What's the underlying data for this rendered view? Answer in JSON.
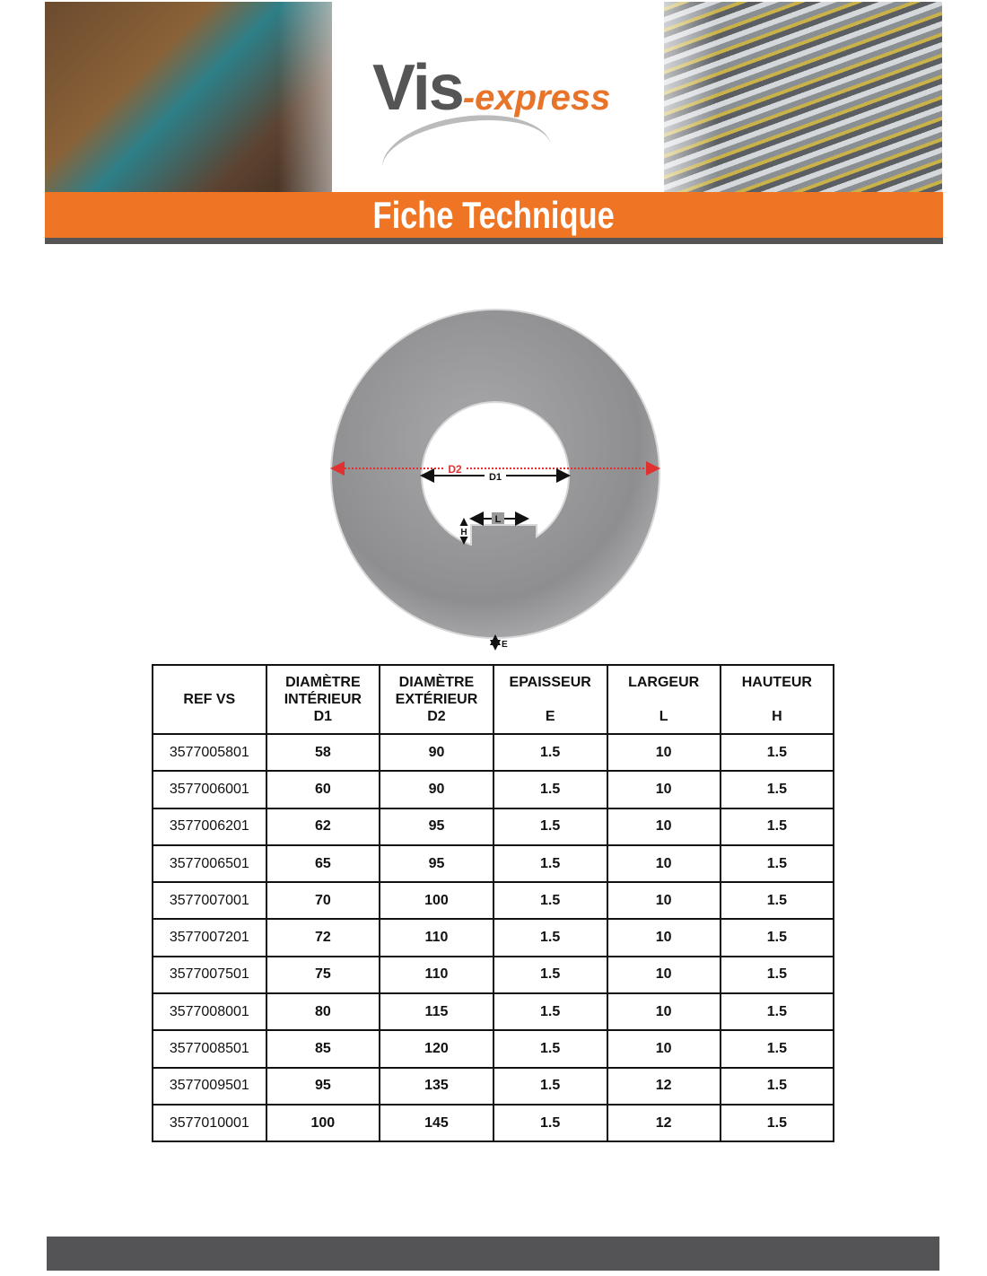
{
  "header": {
    "logo": {
      "vis": "Vis",
      "express": "-express"
    },
    "title": "Fiche Technique"
  },
  "diagram": {
    "labels": {
      "outer_diameter": "D2",
      "inner_diameter": "D1",
      "width": "L",
      "height": "H",
      "thickness": "E"
    },
    "colors": {
      "d2_arrow": "#e03030",
      "d1_arrow": "#111111"
    }
  },
  "table": {
    "headers": [
      [
        "REF VS"
      ],
      [
        "DIAMÈTRE",
        "INTÉRIEUR",
        "D1"
      ],
      [
        "DIAMÈTRE",
        "EXTÉRIEUR",
        "D2"
      ],
      [
        "EPAISSEUR",
        "",
        "E"
      ],
      [
        "LARGEUR",
        "",
        "L"
      ],
      [
        "HAUTEUR",
        "",
        "H"
      ]
    ],
    "rows": [
      [
        "3577005801",
        "58",
        "90",
        "1.5",
        "10",
        "1.5"
      ],
      [
        "3577006001",
        "60",
        "90",
        "1.5",
        "10",
        "1.5"
      ],
      [
        "3577006201",
        "62",
        "95",
        "1.5",
        "10",
        "1.5"
      ],
      [
        "3577006501",
        "65",
        "95",
        "1.5",
        "10",
        "1.5"
      ],
      [
        "3577007001",
        "70",
        "100",
        "1.5",
        "10",
        "1.5"
      ],
      [
        "3577007201",
        "72",
        "110",
        "1.5",
        "10",
        "1.5"
      ],
      [
        "3577007501",
        "75",
        "110",
        "1.5",
        "10",
        "1.5"
      ],
      [
        "3577008001",
        "80",
        "115",
        "1.5",
        "10",
        "1.5"
      ],
      [
        "3577008501",
        "85",
        "120",
        "1.5",
        "10",
        "1.5"
      ],
      [
        "3577009501",
        "95",
        "135",
        "1.5",
        "12",
        "1.5"
      ],
      [
        "3577010001",
        "100",
        "145",
        "1.5",
        "12",
        "1.5"
      ]
    ]
  },
  "colors": {
    "accent": "#ef7424",
    "dark_gray": "#545456"
  }
}
